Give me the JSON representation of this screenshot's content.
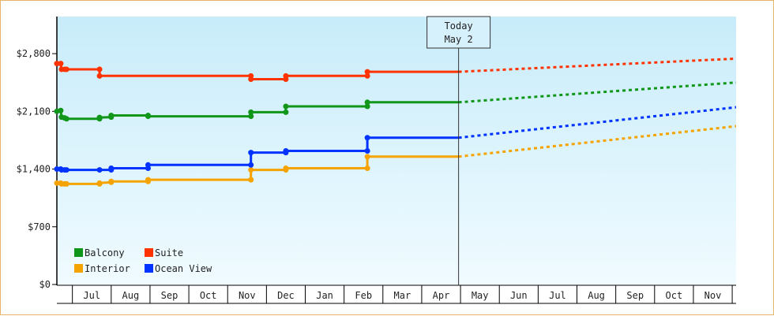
{
  "chart_data": {
    "type": "line",
    "title": "",
    "xlabel": "",
    "ylabel": "",
    "y_ticks": [
      "$0",
      "$700",
      "$1,400",
      "$2,100",
      "$2,800"
    ],
    "y_tick_values": [
      0,
      700,
      1400,
      2100,
      2800
    ],
    "ylim": [
      0,
      3250
    ],
    "x_ticks": [
      "Jul",
      "Aug",
      "Sep",
      "Oct",
      "Nov",
      "Dec",
      "Jan",
      "Feb",
      "Mar",
      "Apr",
      "May",
      "Jun",
      "Jul",
      "Aug",
      "Sep",
      "Oct",
      "Nov"
    ],
    "xlim": [
      0,
      17.5
    ],
    "today": {
      "line1": "Today",
      "line2": "May 2",
      "x": 10.35
    },
    "grid": false,
    "legend_position": "bottom-left",
    "series": [
      {
        "name": "Balcony",
        "color": "#109618",
        "points": [
          [
            0.0,
            2100
          ],
          [
            0.1,
            2110
          ],
          [
            0.12,
            2030
          ],
          [
            0.2,
            2020
          ],
          [
            0.25,
            2010
          ],
          [
            1.1,
            2010
          ],
          [
            1.1,
            2025
          ],
          [
            1.4,
            2030
          ],
          [
            1.4,
            2050
          ],
          [
            2.35,
            2050
          ],
          [
            2.35,
            2040
          ],
          [
            5.0,
            2040
          ],
          [
            5.0,
            2090
          ],
          [
            5.9,
            2090
          ],
          [
            5.9,
            2160
          ],
          [
            8.0,
            2160
          ],
          [
            8.0,
            2210
          ],
          [
            10.35,
            2210
          ]
        ],
        "markers": [
          [
            0.0,
            2100
          ],
          [
            0.1,
            2110
          ],
          [
            0.12,
            2030
          ],
          [
            0.2,
            2020
          ],
          [
            0.25,
            2010
          ],
          [
            1.1,
            2010
          ],
          [
            1.1,
            2025
          ],
          [
            1.4,
            2030
          ],
          [
            1.4,
            2050
          ],
          [
            2.35,
            2050
          ],
          [
            2.35,
            2040
          ],
          [
            5.0,
            2040
          ],
          [
            5.0,
            2090
          ],
          [
            5.9,
            2090
          ],
          [
            5.9,
            2160
          ],
          [
            8.0,
            2160
          ],
          [
            8.0,
            2210
          ]
        ],
        "forecast": [
          [
            10.35,
            2210
          ],
          [
            17.5,
            2450
          ]
        ]
      },
      {
        "name": "Suite",
        "color": "#ff3300",
        "points": [
          [
            0.0,
            2680
          ],
          [
            0.1,
            2680
          ],
          [
            0.12,
            2610
          ],
          [
            0.2,
            2610
          ],
          [
            0.25,
            2610
          ],
          [
            1.1,
            2610
          ],
          [
            1.1,
            2530
          ],
          [
            5.0,
            2530
          ],
          [
            5.0,
            2490
          ],
          [
            5.9,
            2490
          ],
          [
            5.9,
            2530
          ],
          [
            8.0,
            2530
          ],
          [
            8.0,
            2580
          ],
          [
            10.35,
            2580
          ]
        ],
        "markers": [
          [
            0.0,
            2680
          ],
          [
            0.1,
            2680
          ],
          [
            0.12,
            2610
          ],
          [
            0.2,
            2610
          ],
          [
            0.25,
            2610
          ],
          [
            1.1,
            2610
          ],
          [
            1.1,
            2530
          ],
          [
            5.0,
            2530
          ],
          [
            5.0,
            2490
          ],
          [
            5.9,
            2490
          ],
          [
            5.9,
            2530
          ],
          [
            8.0,
            2530
          ],
          [
            8.0,
            2580
          ]
        ],
        "forecast": [
          [
            10.35,
            2580
          ],
          [
            17.5,
            2740
          ]
        ]
      },
      {
        "name": "Interior",
        "color": "#f5a300",
        "points": [
          [
            0.0,
            1230
          ],
          [
            0.1,
            1230
          ],
          [
            0.12,
            1220
          ],
          [
            0.2,
            1220
          ],
          [
            0.25,
            1220
          ],
          [
            1.1,
            1220
          ],
          [
            1.1,
            1230
          ],
          [
            1.4,
            1240
          ],
          [
            1.4,
            1250
          ],
          [
            2.35,
            1250
          ],
          [
            2.35,
            1270
          ],
          [
            5.0,
            1270
          ],
          [
            5.0,
            1390
          ],
          [
            5.9,
            1390
          ],
          [
            5.9,
            1410
          ],
          [
            8.0,
            1410
          ],
          [
            8.0,
            1550
          ],
          [
            10.35,
            1550
          ]
        ],
        "markers": [
          [
            0.0,
            1230
          ],
          [
            0.1,
            1230
          ],
          [
            0.12,
            1220
          ],
          [
            0.2,
            1220
          ],
          [
            0.25,
            1220
          ],
          [
            1.1,
            1220
          ],
          [
            1.1,
            1230
          ],
          [
            1.4,
            1240
          ],
          [
            1.4,
            1250
          ],
          [
            2.35,
            1250
          ],
          [
            2.35,
            1270
          ],
          [
            5.0,
            1270
          ],
          [
            5.0,
            1390
          ],
          [
            5.9,
            1390
          ],
          [
            5.9,
            1410
          ],
          [
            8.0,
            1410
          ],
          [
            8.0,
            1550
          ]
        ],
        "forecast": [
          [
            10.35,
            1550
          ],
          [
            17.5,
            1920
          ]
        ]
      },
      {
        "name": "Ocean View",
        "color": "#0033ff",
        "points": [
          [
            0.0,
            1400
          ],
          [
            0.1,
            1400
          ],
          [
            0.12,
            1390
          ],
          [
            0.2,
            1390
          ],
          [
            0.25,
            1390
          ],
          [
            1.1,
            1390
          ],
          [
            1.1,
            1390
          ],
          [
            1.4,
            1390
          ],
          [
            1.4,
            1410
          ],
          [
            2.35,
            1410
          ],
          [
            2.35,
            1450
          ],
          [
            5.0,
            1450
          ],
          [
            5.0,
            1600
          ],
          [
            5.9,
            1600
          ],
          [
            5.9,
            1620
          ],
          [
            8.0,
            1620
          ],
          [
            8.0,
            1780
          ],
          [
            10.35,
            1780
          ]
        ],
        "markers": [
          [
            0.0,
            1400
          ],
          [
            0.1,
            1400
          ],
          [
            0.12,
            1390
          ],
          [
            0.2,
            1390
          ],
          [
            0.25,
            1390
          ],
          [
            1.1,
            1390
          ],
          [
            1.4,
            1390
          ],
          [
            1.4,
            1410
          ],
          [
            2.35,
            1410
          ],
          [
            2.35,
            1450
          ],
          [
            5.0,
            1450
          ],
          [
            5.0,
            1600
          ],
          [
            5.9,
            1600
          ],
          [
            5.9,
            1620
          ],
          [
            8.0,
            1620
          ],
          [
            8.0,
            1780
          ]
        ],
        "forecast": [
          [
            10.35,
            1780
          ],
          [
            17.5,
            2150
          ]
        ]
      }
    ],
    "legend_order": [
      "Balcony",
      "Suite",
      "Interior",
      "Ocean View"
    ]
  }
}
